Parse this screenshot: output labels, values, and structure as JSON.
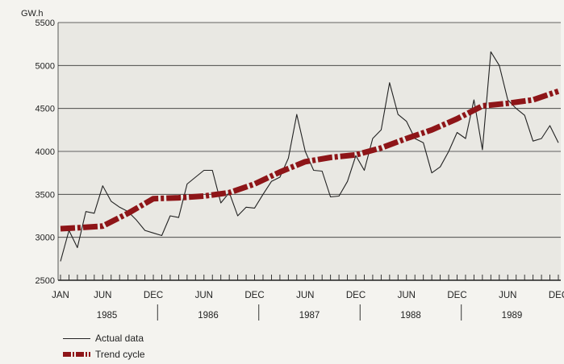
{
  "chart_data": {
    "type": "line",
    "title": "",
    "ylabel": "GW.h",
    "xlabel": "",
    "ylim": [
      2500,
      5500
    ],
    "yticks": [
      2500,
      3000,
      3500,
      4000,
      4500,
      5000,
      5500
    ],
    "grid": "horizontal",
    "x_tick_labels": [
      "JAN",
      "JUN",
      "DEC",
      "JUN",
      "DEC",
      "JUN",
      "DEC",
      "JUN",
      "DEC",
      "JUN",
      "DEC"
    ],
    "x_tick_months": [
      1,
      6,
      12,
      18,
      24,
      30,
      36,
      42,
      48,
      54,
      60
    ],
    "year_labels": [
      "1985",
      "1986",
      "1987",
      "1988",
      "1989"
    ],
    "series": [
      {
        "name": "Actual data",
        "color": "#222222",
        "style": "thin-solid",
        "months": [
          1,
          2,
          3,
          4,
          5,
          6,
          7,
          8,
          9,
          10,
          11,
          12,
          13,
          14,
          15,
          16,
          17,
          18,
          19,
          20,
          21,
          22,
          23,
          24,
          25,
          26,
          27,
          28,
          29,
          30,
          31,
          32,
          33,
          34,
          35,
          36,
          37,
          38,
          39,
          40,
          41,
          42,
          43,
          44,
          45,
          46,
          47,
          48,
          49,
          50,
          51,
          52,
          53,
          54,
          55,
          56,
          57,
          58,
          59,
          60
        ],
        "values": [
          2720,
          3080,
          2880,
          3300,
          3280,
          3600,
          3420,
          3350,
          3300,
          3200,
          3080,
          3050,
          3020,
          3250,
          3230,
          3620,
          3700,
          3780,
          3780,
          3400,
          3520,
          3250,
          3350,
          3340,
          3500,
          3650,
          3700,
          3920,
          4430,
          4000,
          3780,
          3770,
          3470,
          3480,
          3650,
          3950,
          3780,
          4150,
          4250,
          4800,
          4430,
          4350,
          4150,
          4100,
          3750,
          3820,
          4000,
          4220,
          4150,
          4600,
          4020,
          5160,
          5000,
          4600,
          4500,
          4420,
          4120,
          4150,
          4300,
          4100
        ]
      },
      {
        "name": "Trend cycle",
        "color": "#8e1518",
        "style": "thick-dash-dot",
        "months": [
          1,
          3,
          6,
          9,
          12,
          15,
          18,
          21,
          24,
          27,
          30,
          33,
          36,
          39,
          42,
          45,
          48,
          51,
          54,
          57,
          60
        ],
        "values": [
          3100,
          3110,
          3130,
          3280,
          3450,
          3460,
          3480,
          3520,
          3620,
          3760,
          3880,
          3930,
          3960,
          4040,
          4150,
          4250,
          4380,
          4530,
          4560,
          4600,
          4700
        ]
      }
    ],
    "legend": {
      "position": "bottom-left",
      "entries": [
        "Actual data",
        "Trend cycle"
      ]
    }
  }
}
